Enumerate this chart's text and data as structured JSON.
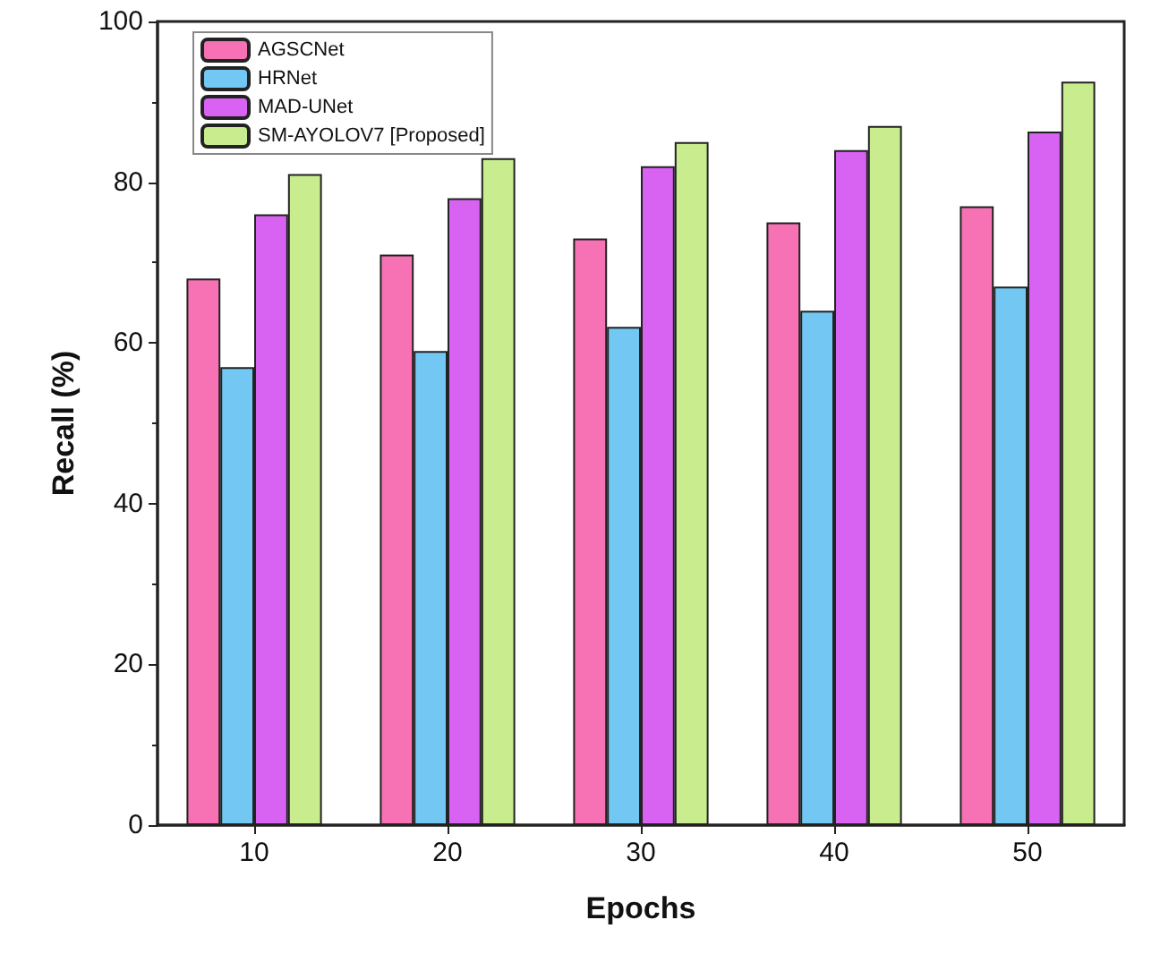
{
  "chart_data": {
    "type": "bar",
    "xlabel": "Epochs",
    "ylabel": "Recall (%)",
    "categories": [
      "10",
      "20",
      "30",
      "40",
      "50"
    ],
    "series": [
      {
        "name": "AGSCNet",
        "color": "#f772b4",
        "values": [
          68,
          71,
          73,
          75,
          77
        ]
      },
      {
        "name": "HRNet",
        "color": "#72c8f2",
        "values": [
          57,
          59,
          62,
          64,
          67
        ]
      },
      {
        "name": "MAD-UNet",
        "color": "#d862f2",
        "values": [
          76,
          78,
          82,
          84,
          86.3
        ]
      },
      {
        "name": "SM-AYOLOV7 [Proposed]",
        "color": "#c9ec8e",
        "values": [
          81,
          83,
          85,
          87,
          92.5
        ]
      }
    ],
    "ylim": [
      0,
      100
    ],
    "yticks": [
      0,
      20,
      40,
      60,
      80,
      100
    ],
    "legend": "top left",
    "grid": false
  }
}
